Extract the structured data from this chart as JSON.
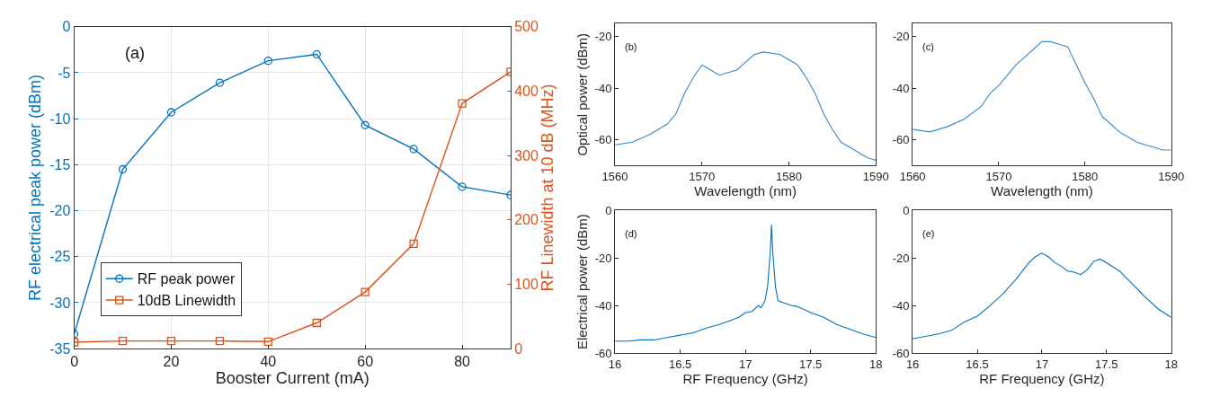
{
  "chart_data": [
    {
      "type": "line",
      "annotations": [
        "(a)"
      ],
      "xlabel": "Booster Current (mA)",
      "ylabel": "RF electrical peak power (dBm)",
      "y2label": "RF Linewidth at 10 dB (MHz)",
      "x": [
        0,
        10,
        20,
        30,
        40,
        50,
        60,
        70,
        80,
        90
      ],
      "xlim": [
        0,
        90
      ],
      "xticks": [
        0,
        20,
        40,
        60,
        80
      ],
      "ylim": [
        -35,
        0
      ],
      "yticks": [
        -35,
        -30,
        -25,
        -20,
        -15,
        -10,
        -5,
        0
      ],
      "y2lim": [
        0,
        500
      ],
      "y2ticks": [
        0,
        100,
        200,
        300,
        400,
        500
      ],
      "grid": true,
      "legend": "bottom left",
      "series": [
        {
          "name": "RF peak power",
          "color": "#0072bd",
          "marker": "circle",
          "values": [
            -33.4,
            -15.5,
            -9.3,
            -6.1,
            -3.7,
            -3.0,
            -10.7,
            -13.3,
            -17.4,
            -18.3
          ]
        },
        {
          "name": "10dB Linewidth",
          "color": "#d95319",
          "marker": "square",
          "axis": "y2",
          "values": [
            10,
            12,
            12,
            12,
            11,
            40,
            88,
            163,
            381,
            430
          ]
        }
      ]
    },
    {
      "type": "line",
      "annotations": [
        "(b)"
      ],
      "xlabel": "Wavelength (nm)",
      "ylabel": "Optical power (dBm)",
      "x": [
        1560,
        1562,
        1564,
        1566,
        1567,
        1568,
        1569,
        1570,
        1571,
        1572,
        1573,
        1574,
        1575,
        1576,
        1577,
        1578,
        1579,
        1580,
        1581,
        1582,
        1583,
        1584,
        1585,
        1586,
        1587,
        1588,
        1589,
        1590
      ],
      "xlim": [
        1560,
        1590
      ],
      "xticks": [
        1560,
        1570,
        1580,
        1590
      ],
      "ylim": [
        -70,
        -15
      ],
      "yticks": [
        -60,
        -40,
        -20
      ],
      "series": [
        {
          "color": "#3a87c0",
          "values": [
            -62,
            -61,
            -58,
            -54,
            -50,
            -42,
            -36,
            -31,
            -33,
            -35,
            -34,
            -33,
            -30,
            -27,
            -26,
            -26.5,
            -27,
            -29,
            -31,
            -36,
            -42,
            -50,
            -56,
            -61,
            -63,
            -65,
            -67,
            -68
          ]
        }
      ]
    },
    {
      "type": "line",
      "annotations": [
        "(c)"
      ],
      "xlabel": "Wavelength (nm)",
      "x": [
        1560,
        1562,
        1564,
        1566,
        1568,
        1569,
        1570,
        1571,
        1572,
        1573,
        1574,
        1575,
        1576,
        1577,
        1578,
        1579,
        1580,
        1581,
        1582,
        1583,
        1584,
        1585,
        1586,
        1587,
        1588,
        1589,
        1590
      ],
      "xlim": [
        1560,
        1590
      ],
      "xticks": [
        1560,
        1570,
        1580,
        1590
      ],
      "ylim": [
        -70,
        -15
      ],
      "yticks": [
        -60,
        -40,
        -20
      ],
      "series": [
        {
          "color": "#3a87c0",
          "values": [
            -56,
            -57,
            -55,
            -52,
            -47,
            -42,
            -39,
            -35,
            -31,
            -28,
            -25,
            -22,
            -22,
            -23,
            -24,
            -31,
            -38,
            -44,
            -51,
            -54,
            -57,
            -59,
            -61,
            -62,
            -63,
            -64,
            -64
          ]
        }
      ]
    },
    {
      "type": "line",
      "annotations": [
        "(d)"
      ],
      "xlabel": "RF Frequency (GHz)",
      "ylabel": "Electrical power (dBm)",
      "x": [
        16,
        16.1,
        16.2,
        16.3,
        16.4,
        16.5,
        16.6,
        16.7,
        16.8,
        16.9,
        16.95,
        17.0,
        17.05,
        17.1,
        17.12,
        17.15,
        17.17,
        17.19,
        17.2,
        17.21,
        17.23,
        17.25,
        17.3,
        17.35,
        17.4,
        17.5,
        17.6,
        17.7,
        17.8,
        17.9,
        18.0
      ],
      "xlim": [
        16,
        18
      ],
      "xticks": [
        16,
        16.5,
        17,
        17.5,
        18
      ],
      "ylim": [
        -60,
        0
      ],
      "yticks": [
        -60,
        -40,
        -20,
        0
      ],
      "series": [
        {
          "color": "#0072bd",
          "values": [
            -55,
            -55,
            -54.5,
            -54.5,
            -53.5,
            -52.5,
            -51.5,
            -49.5,
            -48,
            -46,
            -45,
            -43,
            -42.5,
            -40,
            -41,
            -38,
            -32,
            -18,
            -6,
            -18,
            -32,
            -38,
            -39,
            -40,
            -40.5,
            -43,
            -45,
            -48,
            -50,
            -52,
            -53.5
          ]
        }
      ]
    },
    {
      "type": "line",
      "annotations": [
        "(e)"
      ],
      "xlabel": "RF Frequency (GHz)",
      "x": [
        16,
        16.1,
        16.2,
        16.3,
        16.4,
        16.5,
        16.6,
        16.7,
        16.8,
        16.9,
        16.95,
        17.0,
        17.05,
        17.1,
        17.15,
        17.2,
        17.25,
        17.3,
        17.35,
        17.4,
        17.45,
        17.5,
        17.6,
        17.7,
        17.8,
        17.9,
        18.0
      ],
      "xlim": [
        16,
        18
      ],
      "xticks": [
        16,
        16.5,
        17,
        17.5,
        18
      ],
      "ylim": [
        -60,
        0
      ],
      "yticks": [
        -60,
        -40,
        -20,
        0
      ],
      "series": [
        {
          "color": "#0072bd",
          "values": [
            -54,
            -53,
            -52,
            -50.5,
            -47,
            -44.5,
            -40,
            -35,
            -29,
            -22,
            -19.5,
            -18,
            -19.5,
            -22,
            -23.5,
            -25.5,
            -26,
            -27,
            -25,
            -21.5,
            -20.5,
            -22,
            -25.5,
            -31,
            -36.5,
            -41.5,
            -45
          ]
        }
      ]
    }
  ]
}
